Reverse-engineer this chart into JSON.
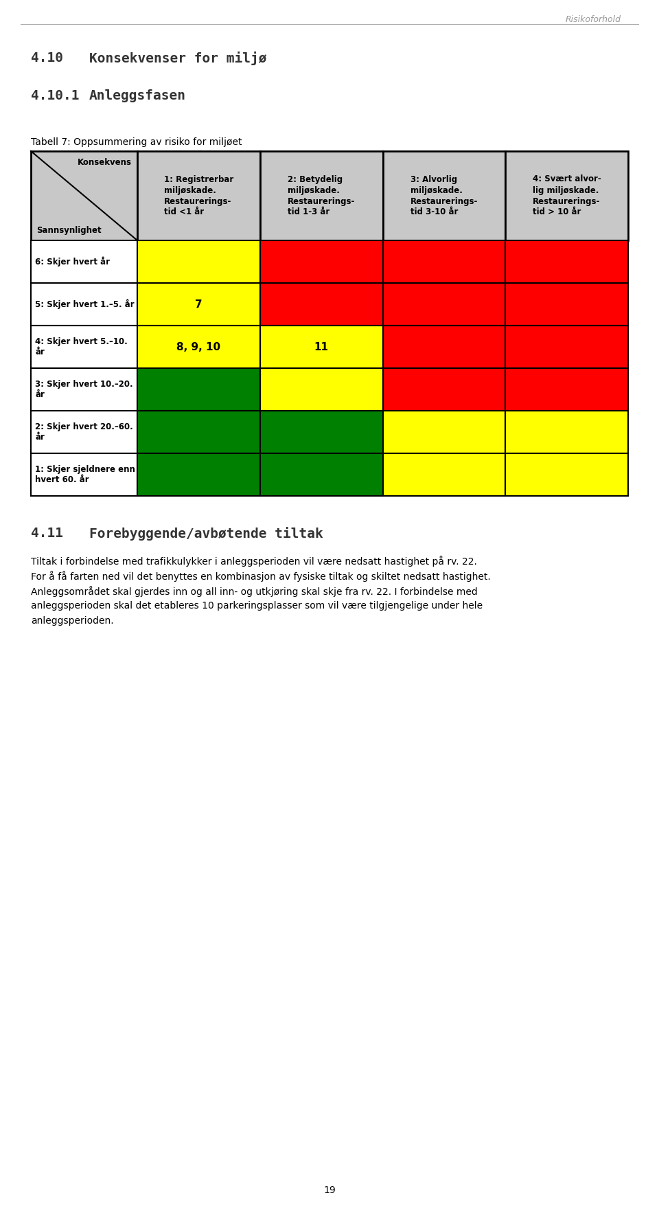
{
  "page_header": "Risikoforhold",
  "section_410_num": "4.10",
  "section_410_text": "Konsekvenser for miljø",
  "section_4101_num": "4.10.1",
  "section_4101_text": "Anleggsfasen",
  "table_caption": "Tabell 7: Oppsummering av risiko for miljøet",
  "col_header_0_top": "Konsekvens",
  "col_header_0_bot": "Sannsynlighet",
  "col_headers": [
    "1: Registrerbar\nmiljøskade.\nRestaurerings-\ntid <1 år",
    "2: Betydelig\nmiljøskade.\nRestaurerings-\ntid 1-3 år",
    "3: Alvorlig\nmiljøskade.\nRestaurerings-\ntid 3-10 år",
    "4: Svært alvor-\nlig miljøskade.\nRestaurerings-\ntid > 10 år"
  ],
  "row_labels": [
    "6: Skjer hvert år",
    "5: Skjer hvert 1.–5. år",
    "4: Skjer hvert 5.–10.\når",
    "3: Skjer hvert 10.–20.\når",
    "2: Skjer hvert 20.–60.\når",
    "1: Skjer sjeldnere enn\nhvert 60. år"
  ],
  "cell_colors": [
    [
      "#FFFF00",
      "#FF0000",
      "#FF0000",
      "#FF0000"
    ],
    [
      "#FFFF00",
      "#FF0000",
      "#FF0000",
      "#FF0000"
    ],
    [
      "#FFFF00",
      "#FFFF00",
      "#FF0000",
      "#FF0000"
    ],
    [
      "#008000",
      "#FFFF00",
      "#FF0000",
      "#FF0000"
    ],
    [
      "#008000",
      "#008000",
      "#FFFF00",
      "#FFFF00"
    ],
    [
      "#008000",
      "#008000",
      "#FFFF00",
      "#FFFF00"
    ]
  ],
  "cell_texts": [
    [
      "",
      "",
      "",
      ""
    ],
    [
      "7",
      "",
      "",
      ""
    ],
    [
      "8, 9, 10",
      "11",
      "",
      ""
    ],
    [
      "",
      "",
      "",
      ""
    ],
    [
      "",
      "",
      "",
      ""
    ],
    [
      "",
      "",
      "",
      ""
    ]
  ],
  "header_bg": "#C8C8C8",
  "row_label_bg": "#FFFFFF",
  "section_411_num": "4.11",
  "section_411_text": "Forebyggende/avbøtende tiltak",
  "para1_line1": "Tiltak i forbindelse med trafikkulykker i anleggsperioden vil være nedsatt hastighet på rv. 22.",
  "para1_line2": "For å få farten ned vil det benyttes en kombinasjon av fysiske tiltak og skiltet nedsatt hastighet.",
  "para1_line3": "Anleggsområdet skal gjerdes inn og all inn- og utkjøring skal skje fra rv. 22. I forbindelse med",
  "para1_line4": "anleggsperioden skal det etableres 10 parkeringsplasser som vil være tilgjengelige under hele",
  "para1_line5": "anleggsperioden.",
  "page_number": "19"
}
